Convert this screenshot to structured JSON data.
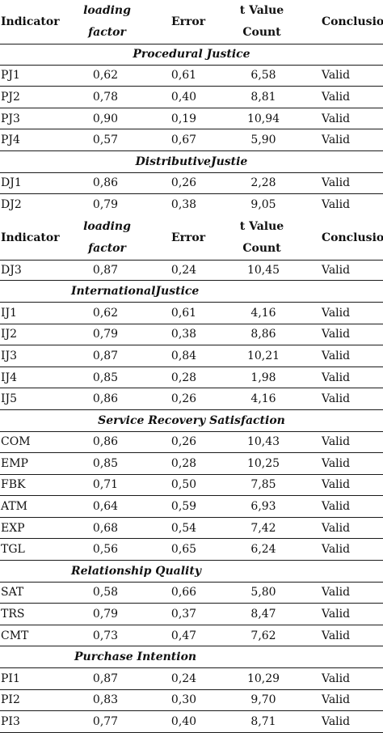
{
  "headers": {
    "indicator": "Indicator",
    "loading_1": "loading",
    "loading_2": "factor",
    "error": "Error",
    "tvalue_1": "t Value",
    "tvalue_2": "Count",
    "conclusion": "Conclusion"
  },
  "sections": [
    {
      "title": "Procedural Justice",
      "rows": [
        {
          "ind": "PJ1",
          "load": "0,62",
          "err": "0,61",
          "t": "6,58",
          "con": "Valid"
        },
        {
          "ind": "PJ2",
          "load": "0,78",
          "err": "0,40",
          "t": "8,81",
          "con": "Valid"
        },
        {
          "ind": "PJ3",
          "load": "0,90",
          "err": "0,19",
          "t": "10,94",
          "con": "Valid"
        },
        {
          "ind": "PJ4",
          "load": "0,57",
          "err": "0,67",
          "t": "5,90",
          "con": "Valid"
        }
      ]
    },
    {
      "title": "DistributiveJustie",
      "rows": [
        {
          "ind": "DJ1",
          "load": "0,86",
          "err": "0,26",
          "t": "2,28",
          "con": "Valid"
        },
        {
          "ind": "DJ2",
          "load": "0,79",
          "err": "0,38",
          "t": "9,05",
          "con": "Valid"
        },
        {
          "ind": "DJ3",
          "load": "0,87",
          "err": "0,24",
          "t": "10,45",
          "con": "Valid"
        }
      ]
    },
    {
      "title": "InternationalJustice",
      "rows": [
        {
          "ind": "IJ1",
          "load": "0,62",
          "err": "0,61",
          "t": "4,16",
          "con": "Valid"
        },
        {
          "ind": "IJ2",
          "load": "0,79",
          "err": "0,38",
          "t": "8,86",
          "con": "Valid"
        },
        {
          "ind": "IJ3",
          "load": "0,87",
          "err": "0,84",
          "t": "10,21",
          "con": "Valid"
        },
        {
          "ind": "IJ4",
          "load": "0,85",
          "err": "0,28",
          "t": "1,98",
          "con": "Valid"
        },
        {
          "ind": "IJ5",
          "load": "0,86",
          "err": "0,26",
          "t": "4,16",
          "con": "Valid"
        }
      ]
    },
    {
      "title": "Service Recovery Satisfaction",
      "rows": [
        {
          "ind": "COM",
          "load": "0,86",
          "err": "0,26",
          "t": "10,43",
          "con": "Valid"
        },
        {
          "ind": "EMP",
          "load": "0,85",
          "err": "0,28",
          "t": "10,25",
          "con": "Valid"
        },
        {
          "ind": "FBK",
          "load": "0,71",
          "err": "0,50",
          "t": "7,85",
          "con": "Valid"
        },
        {
          "ind": "ATM",
          "load": "0,64",
          "err": "0,59",
          "t": "6,93",
          "con": "Valid"
        },
        {
          "ind": "EXP",
          "load": "0,68",
          "err": "0,54",
          "t": "7,42",
          "con": "Valid"
        },
        {
          "ind": "TGL",
          "load": "0,56",
          "err": "0,65",
          "t": "6,24",
          "con": "Valid"
        }
      ]
    },
    {
      "title": "Relationship Quality",
      "rows": [
        {
          "ind": "SAT",
          "load": "0,58",
          "err": "0,66",
          "t": "5,80",
          "con": "Valid"
        },
        {
          "ind": "TRS",
          "load": "0,79",
          "err": "0,37",
          "t": "8,47",
          "con": "Valid"
        },
        {
          "ind": "CMT",
          "load": "0,73",
          "err": "0,47",
          "t": "7,62",
          "con": "Valid"
        }
      ]
    },
    {
      "title": "Purchase Intention",
      "rows": [
        {
          "ind": "PI1",
          "load": "0,87",
          "err": "0,24",
          "t": "10,29",
          "con": "Valid"
        },
        {
          "ind": "PI2",
          "load": "0,83",
          "err": "0,30",
          "t": "9,70",
          "con": "Valid"
        },
        {
          "ind": "PI3",
          "load": "0,77",
          "err": "0,40",
          "t": "8,71",
          "con": "Valid"
        }
      ]
    }
  ]
}
